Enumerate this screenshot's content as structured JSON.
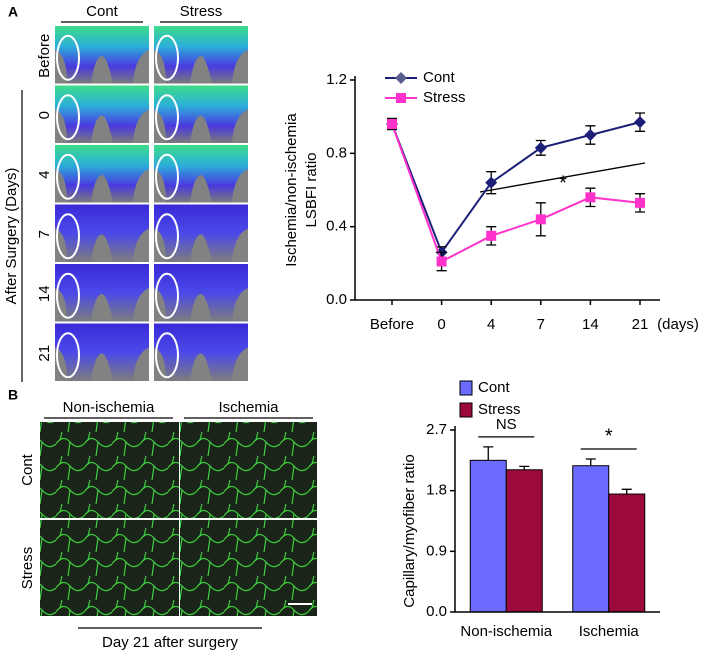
{
  "panel_a": {
    "label": "A",
    "columns": [
      "Cont",
      "Stress"
    ],
    "rows": [
      "Before",
      "0",
      "4",
      "7",
      "14",
      "21"
    ],
    "row_axis_label": "After Surgery (Days)"
  },
  "panel_b": {
    "label": "B",
    "columns": [
      "Non-ischemia",
      "Ischemia"
    ],
    "rows": [
      "Cont",
      "Stress"
    ],
    "caption": "Day 21 after surgery"
  },
  "chart_data": [
    {
      "type": "line",
      "y_label": [
        "Ischemia/non-ischemia",
        "LSBFI  ratio"
      ],
      "x_label": "(days)",
      "categories": [
        "Before",
        "0",
        "4",
        "7",
        "14",
        "21"
      ],
      "series": [
        {
          "name": "Cont",
          "color": "#1c1f78",
          "marker": "diamond",
          "values": [
            0.96,
            0.26,
            0.64,
            0.83,
            0.9,
            0.97
          ],
          "errors": [
            0.03,
            0.03,
            0.06,
            0.04,
            0.05,
            0.05
          ]
        },
        {
          "name": "Stress",
          "color": "#ff33cc",
          "marker": "square",
          "values": [
            0.96,
            0.21,
            0.35,
            0.44,
            0.56,
            0.53
          ],
          "errors": [
            0.03,
            0.05,
            0.05,
            0.09,
            0.05,
            0.05
          ]
        }
      ],
      "ylim": [
        0,
        1.2
      ],
      "yticks": [
        {
          "value": 0,
          "label": "0.0"
        },
        0.4,
        0.8,
        1.2
      ],
      "annotation": "*",
      "legend": "upper left"
    },
    {
      "type": "bar",
      "y_label": "Capillary/myofiber ratio",
      "categories": [
        "Non-ischemia",
        "Ischemia"
      ],
      "series": [
        {
          "name": "Cont",
          "color": "#6b6bff",
          "values": [
            2.25,
            2.17
          ],
          "errors": [
            0.2,
            0.1
          ]
        },
        {
          "name": "Stress",
          "color": "#9b0a3a",
          "values": [
            2.11,
            1.75
          ],
          "errors": [
            0.05,
            0.07
          ]
        }
      ],
      "ylim": [
        0,
        2.7
      ],
      "yticks": [
        {
          "value": 0,
          "label": "0.0"
        },
        0.9,
        1.8,
        2.7
      ],
      "annotations": [
        "NS",
        "*"
      ],
      "legend": "upper left"
    }
  ]
}
